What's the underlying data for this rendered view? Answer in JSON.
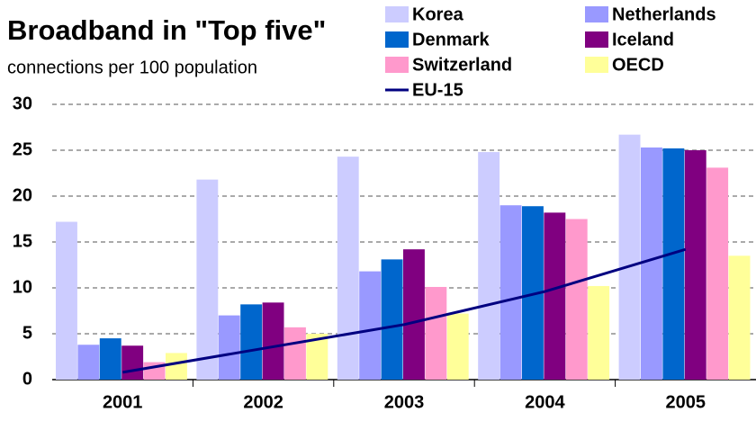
{
  "chart_data": {
    "type": "bar",
    "title": "Broadband in \"Top five\"",
    "subtitle": "connections per 100 population",
    "categories": [
      "2001",
      "2002",
      "2003",
      "2004",
      "2005"
    ],
    "series": [
      {
        "name": "Korea",
        "color": "#ccccff",
        "values": [
          17.2,
          21.8,
          24.3,
          24.8,
          26.7
        ]
      },
      {
        "name": "Netherlands",
        "color": "#9999ff",
        "values": [
          3.8,
          7.0,
          11.8,
          19.0,
          25.3
        ]
      },
      {
        "name": "Denmark",
        "color": "#0066cc",
        "values": [
          4.5,
          8.2,
          13.1,
          18.9,
          25.2
        ]
      },
      {
        "name": "Iceland",
        "color": "#800080",
        "values": [
          3.7,
          8.4,
          14.2,
          18.2,
          25.0
        ]
      },
      {
        "name": "Switzerland",
        "color": "#ff99cc",
        "values": [
          1.9,
          5.7,
          10.1,
          17.5,
          23.1
        ]
      },
      {
        "name": "OECD",
        "color": "#ffff99",
        "values": [
          2.9,
          5.0,
          7.2,
          10.2,
          13.5
        ]
      },
      {
        "name": "EU-15",
        "color": "#000080",
        "type": "line",
        "values": [
          0.8,
          3.4,
          6.0,
          9.6,
          14.2
        ]
      }
    ],
    "ylim": [
      0,
      30
    ],
    "yticks": [
      0,
      5,
      10,
      15,
      20,
      25,
      30
    ],
    "grid": true
  }
}
